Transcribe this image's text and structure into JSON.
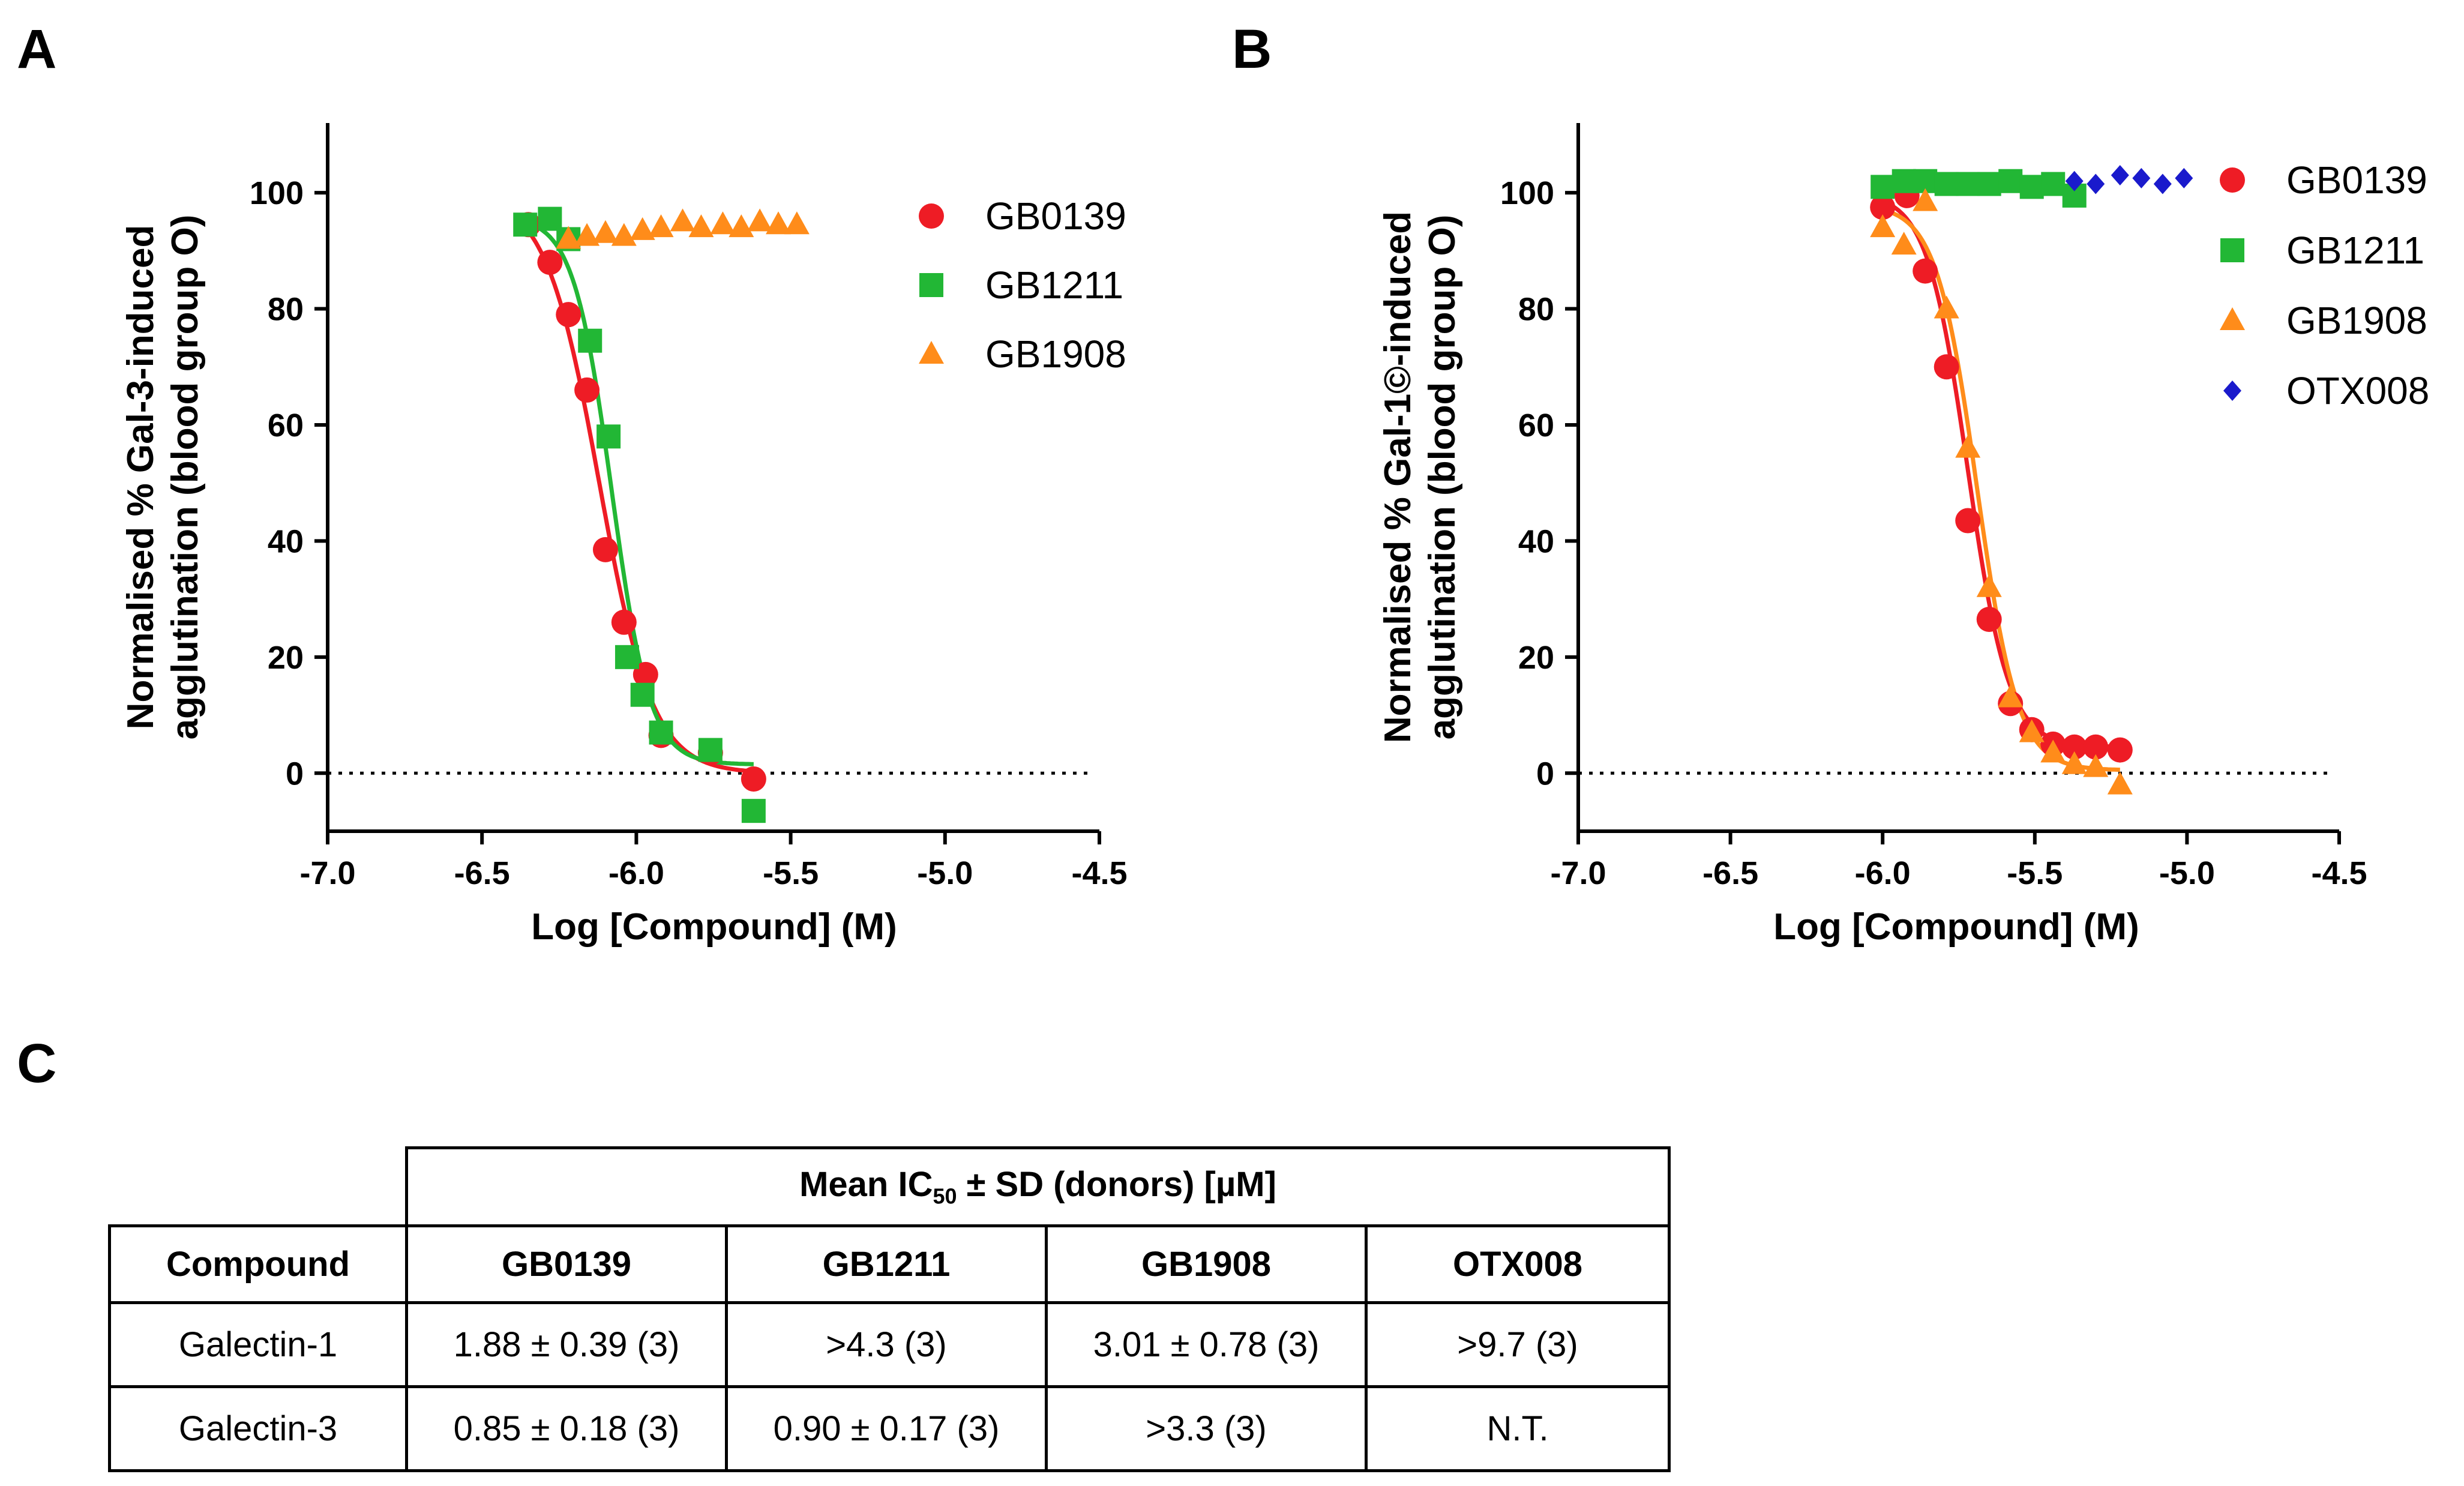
{
  "panels": {
    "a": "A",
    "b": "B",
    "c": "C"
  },
  "chart_data": [
    {
      "type": "scatter",
      "panel": "A",
      "xlabel": "Log [Compound] (M)",
      "ylabel_line1": "Normalised % Gal-3-induced",
      "ylabel_line2": "agglutination (blood group O)",
      "xlim": [
        -7.0,
        -4.5
      ],
      "ylim": [
        -10,
        112
      ],
      "xticks": [
        "-7.0",
        "-6.5",
        "-6.0",
        "-5.5",
        "-5.0",
        "-4.5"
      ],
      "yticks": [
        "0",
        "20",
        "40",
        "60",
        "80",
        "100"
      ],
      "reference_line_y": 0,
      "series": [
        {
          "name": "GB0139",
          "marker": "circle",
          "color": "#ee1c25",
          "fit": [
            0.0,
            100.0,
            -6.12,
            5.0
          ],
          "points": [
            [
              -6.35,
              94.5
            ],
            [
              -6.28,
              88
            ],
            [
              -6.22,
              79
            ],
            [
              -6.16,
              66
            ],
            [
              -6.1,
              38.5
            ],
            [
              -6.04,
              26
            ],
            [
              -5.97,
              17
            ],
            [
              -5.92,
              6.5
            ],
            [
              -5.76,
              3.5
            ],
            [
              -5.62,
              -1
            ]
          ]
        },
        {
          "name": "GB1211",
          "marker": "square",
          "color": "#22b735",
          "fit": [
            1.5,
            96.0,
            -6.08,
            7.0
          ],
          "points": [
            [
              -6.36,
              94.5
            ],
            [
              -6.28,
              95.5
            ],
            [
              -6.22,
              92
            ],
            [
              -6.15,
              74.5
            ],
            [
              -6.09,
              58
            ],
            [
              -6.03,
              20
            ],
            [
              -5.98,
              13.5
            ],
            [
              -5.92,
              7
            ],
            [
              -5.76,
              4
            ],
            [
              -5.62,
              -6.5
            ]
          ]
        },
        {
          "name": "GB1908",
          "marker": "triangle",
          "color": "#ff8c1a",
          "points": [
            [
              -6.22,
              92
            ],
            [
              -6.16,
              92.5
            ],
            [
              -6.1,
              93
            ],
            [
              -6.04,
              92.5
            ],
            [
              -5.98,
              93.5
            ],
            [
              -5.92,
              94
            ],
            [
              -5.85,
              95
            ],
            [
              -5.79,
              94
            ],
            [
              -5.72,
              94.5
            ],
            [
              -5.66,
              94
            ],
            [
              -5.6,
              95
            ],
            [
              -5.54,
              94.5
            ],
            [
              -5.48,
              94.5
            ]
          ]
        }
      ]
    },
    {
      "type": "scatter",
      "panel": "B",
      "xlabel": "Log [Compound] (M)",
      "ylabel_line1": "Normalised % Gal-1©-induced",
      "ylabel_line2": "agglutination (blood group O)",
      "xlim": [
        -7.0,
        -4.5
      ],
      "ylim": [
        -10,
        112
      ],
      "xticks": [
        "-7.0",
        "-6.5",
        "-6.0",
        "-5.5",
        "-5.0",
        "-4.5"
      ],
      "yticks": [
        "0",
        "20",
        "40",
        "60",
        "80",
        "100"
      ],
      "reference_line_y": 0,
      "series": [
        {
          "name": "GB0139",
          "marker": "circle",
          "color": "#ee1c25",
          "fit": [
            4.5,
            100.0,
            -5.72,
            6.5
          ],
          "points": [
            [
              -6.0,
              97.5
            ],
            [
              -5.92,
              99.5
            ],
            [
              -5.86,
              86.5
            ],
            [
              -5.79,
              70
            ],
            [
              -5.72,
              43.5
            ],
            [
              -5.65,
              26.5
            ],
            [
              -5.58,
              12
            ],
            [
              -5.51,
              7.5
            ],
            [
              -5.44,
              5
            ],
            [
              -5.37,
              4.5
            ],
            [
              -5.3,
              4.5
            ],
            [
              -5.22,
              4
            ]
          ]
        },
        {
          "name": "GB1211",
          "marker": "square",
          "color": "#22b735",
          "points": [
            [
              -6.0,
              101
            ],
            [
              -5.93,
              102
            ],
            [
              -5.86,
              102
            ],
            [
              -5.79,
              101.5
            ],
            [
              -5.72,
              101.5
            ],
            [
              -5.65,
              101.5
            ],
            [
              -5.58,
              102
            ],
            [
              -5.51,
              101
            ],
            [
              -5.44,
              101.5
            ],
            [
              -5.37,
              99.5
            ]
          ]
        },
        {
          "name": "GB1908",
          "marker": "triangle",
          "color": "#ff8c1a",
          "fit": [
            0.5,
            98.0,
            -5.69,
            6.5
          ],
          "points": [
            [
              -6.0,
              94
            ],
            [
              -5.93,
              91
            ],
            [
              -5.86,
              98.5
            ],
            [
              -5.79,
              80
            ],
            [
              -5.72,
              56
            ],
            [
              -5.65,
              32
            ],
            [
              -5.58,
              13
            ],
            [
              -5.51,
              7
            ],
            [
              -5.44,
              3.5
            ],
            [
              -5.37,
              1.5
            ],
            [
              -5.3,
              1
            ],
            [
              -5.22,
              -2
            ]
          ]
        },
        {
          "name": "OTX008",
          "marker": "diamond",
          "color": "#1a1acc",
          "points": [
            [
              -5.37,
              102
            ],
            [
              -5.3,
              101.5
            ],
            [
              -5.22,
              103
            ],
            [
              -5.15,
              102.5
            ],
            [
              -5.08,
              101.5
            ],
            [
              -5.01,
              102.5
            ]
          ]
        }
      ]
    }
  ],
  "table": {
    "span_header": "Mean IC",
    "span_header_sub": "50",
    "span_header_rest": " ± SD (donors) [µM]",
    "columns": [
      "Compound",
      "GB0139",
      "GB1211",
      "GB1908",
      "OTX008"
    ],
    "rows": [
      {
        "label": "Galectin-1",
        "values": [
          "1.88 ± 0.39 (3)",
          ">4.3 (3)",
          "3.01 ± 0.78 (3)",
          ">9.7 (3)"
        ]
      },
      {
        "label": "Galectin-3",
        "values": [
          "0.85 ± 0.18 (3)",
          "0.90 ± 0.17 (3)",
          ">3.3 (3)",
          "N.T."
        ]
      }
    ]
  }
}
